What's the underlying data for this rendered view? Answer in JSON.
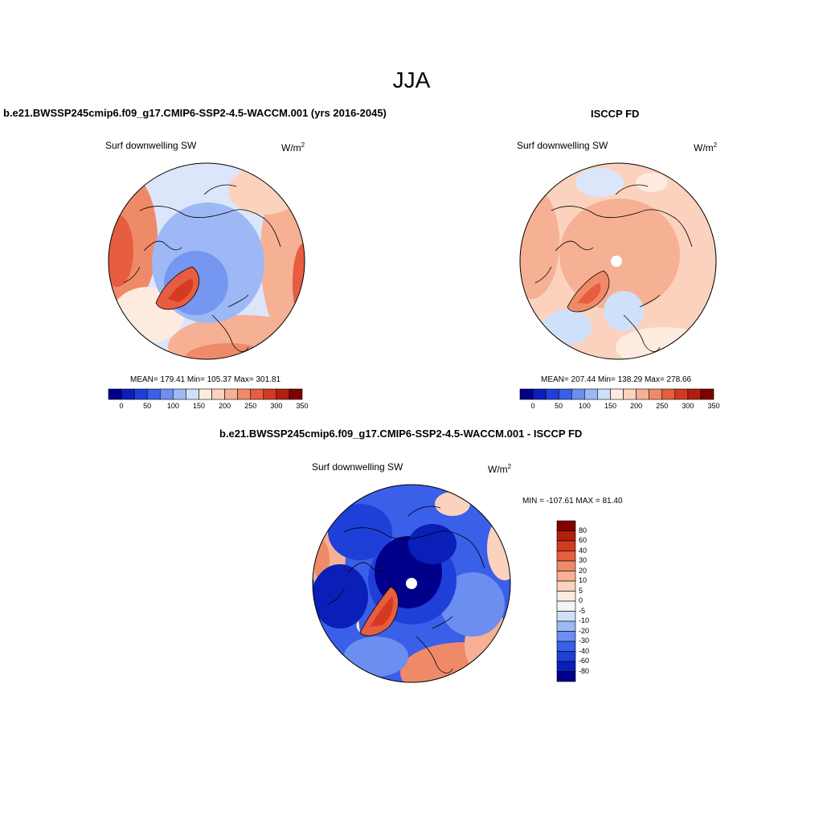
{
  "title": "JJA",
  "units_base": "W/m",
  "units_exp": "2",
  "panels": [
    {
      "name": "model",
      "title": "b.e21.BWSSP245cmip6.f09_g17.CMIP6-SSP2-4.5-WACCM.001 (yrs 2016-2045)",
      "variable": "Surf downwelling SW",
      "stats": "MEAN= 179.41  Min= 105.37  Max= 301.81"
    },
    {
      "name": "obs",
      "title": "ISCCP FD",
      "variable": "Surf downwelling SW",
      "stats": "MEAN= 207.44  Min= 138.29  Max= 278.66"
    },
    {
      "name": "diff",
      "title": "b.e21.BWSSP245cmip6.f09_g17.CMIP6-SSP2-4.5-WACCM.001 - ISCCP FD",
      "variable": "Surf downwelling SW",
      "stats": "MIN = -107.61 MAX =  81.40"
    }
  ],
  "colorbar_abs": {
    "colors": [
      "#00008b",
      "#0a1fb8",
      "#1f3fd9",
      "#3a5fe8",
      "#6b8ef0",
      "#9db8f5",
      "#cfe0fb",
      "#fdebe0",
      "#fbd2bd",
      "#f6b094",
      "#ef8a69",
      "#e65d3f",
      "#d43a22",
      "#b0200f",
      "#800000"
    ],
    "tick_labels": [
      "0",
      "50",
      "100",
      "150",
      "200",
      "250",
      "300",
      "350"
    ]
  },
  "colorbar_diff": {
    "colors": [
      "#800000",
      "#b0200f",
      "#d43a22",
      "#e65d3f",
      "#ef8a69",
      "#f6b094",
      "#fbd2bd",
      "#fdebe0",
      "#f4f4f4",
      "#cfe0fb",
      "#9db8f5",
      "#6b8ef0",
      "#3a5fe8",
      "#1f3fd9",
      "#0a1fb8",
      "#00008b"
    ],
    "tick_labels": [
      "80",
      "60",
      "40",
      "30",
      "20",
      "10",
      "5",
      "0",
      "-5",
      "-10",
      "-20",
      "-30",
      "-40",
      "-60",
      "-80"
    ]
  }
}
